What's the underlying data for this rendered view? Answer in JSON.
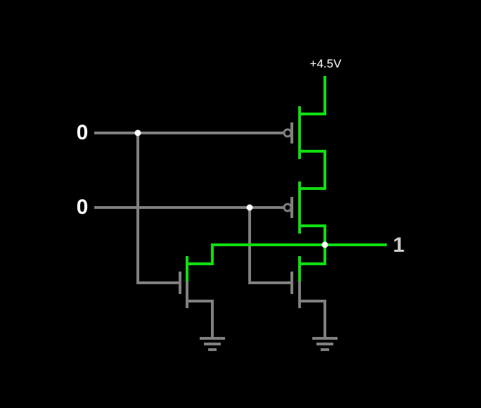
{
  "supply": {
    "label": "+4.5V"
  },
  "inputs": [
    {
      "value": "0"
    },
    {
      "value": "0"
    }
  ],
  "output": {
    "value": "1"
  },
  "colors": {
    "background": "#000000",
    "wire_low": "#7f7f7f",
    "wire_high": "#11dd11",
    "node": "#ffffff",
    "input_label": "#ffffff",
    "output_label": "#cccccc"
  }
}
